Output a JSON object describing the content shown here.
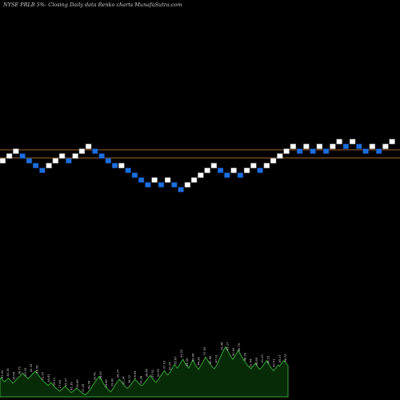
{
  "chart_data": {
    "type": "renko",
    "title": "NYSE PRLB 5%-  Closing Daily data  Renko  charts MunafaSutra.com",
    "colors": {
      "background": "#000000",
      "up_brick": "#ffffff",
      "down_brick": "#1e6fdc",
      "down_brick_border": "#0a3c8c",
      "reference_line": "#a0642a",
      "volume_fill": "#062b06",
      "volume_stroke": "#3aa63a"
    },
    "bricks": [
      {
        "dir": "up",
        "level": 5
      },
      {
        "dir": "up",
        "level": 6
      },
      {
        "dir": "up",
        "level": 7
      },
      {
        "dir": "down",
        "level": 6
      },
      {
        "dir": "down",
        "level": 5
      },
      {
        "dir": "down",
        "level": 4
      },
      {
        "dir": "down",
        "level": 3
      },
      {
        "dir": "up",
        "level": 4
      },
      {
        "dir": "up",
        "level": 5
      },
      {
        "dir": "up",
        "level": 6
      },
      {
        "dir": "down",
        "level": 5
      },
      {
        "dir": "up",
        "level": 6
      },
      {
        "dir": "up",
        "level": 7
      },
      {
        "dir": "up",
        "level": 8
      },
      {
        "dir": "down",
        "level": 7
      },
      {
        "dir": "down",
        "level": 6
      },
      {
        "dir": "down",
        "level": 5
      },
      {
        "dir": "down",
        "level": 4
      },
      {
        "dir": "up",
        "level": 4
      },
      {
        "dir": "down",
        "level": 3
      },
      {
        "dir": "down",
        "level": 2
      },
      {
        "dir": "down",
        "level": 1
      },
      {
        "dir": "down",
        "level": 0
      },
      {
        "dir": "up",
        "level": 1
      },
      {
        "dir": "down",
        "level": 0
      },
      {
        "dir": "up",
        "level": 1
      },
      {
        "dir": "down",
        "level": 0
      },
      {
        "dir": "down",
        "level": -1
      },
      {
        "dir": "up",
        "level": 0
      },
      {
        "dir": "up",
        "level": 1
      },
      {
        "dir": "up",
        "level": 2
      },
      {
        "dir": "up",
        "level": 3
      },
      {
        "dir": "up",
        "level": 4
      },
      {
        "dir": "down",
        "level": 3
      },
      {
        "dir": "down",
        "level": 2
      },
      {
        "dir": "up",
        "level": 3
      },
      {
        "dir": "down",
        "level": 2
      },
      {
        "dir": "up",
        "level": 3
      },
      {
        "dir": "up",
        "level": 4
      },
      {
        "dir": "down",
        "level": 3
      },
      {
        "dir": "up",
        "level": 4
      },
      {
        "dir": "up",
        "level": 5
      },
      {
        "dir": "up",
        "level": 6
      },
      {
        "dir": "up",
        "level": 7
      },
      {
        "dir": "up",
        "level": 8
      },
      {
        "dir": "down",
        "level": 7
      },
      {
        "dir": "up",
        "level": 8
      },
      {
        "dir": "down",
        "level": 7
      },
      {
        "dir": "up",
        "level": 8
      },
      {
        "dir": "down",
        "level": 7
      },
      {
        "dir": "up",
        "level": 8
      },
      {
        "dir": "up",
        "level": 9
      },
      {
        "dir": "down",
        "level": 8
      },
      {
        "dir": "up",
        "level": 9
      },
      {
        "dir": "down",
        "level": 8
      },
      {
        "dir": "down",
        "level": 7
      },
      {
        "dir": "up",
        "level": 8
      },
      {
        "dir": "down",
        "level": 7
      },
      {
        "dir": "up",
        "level": 8
      },
      {
        "dir": "up",
        "level": 9
      }
    ],
    "reference_levels": [
      7.8,
      6.1
    ],
    "volume": [
      28,
      31,
      27,
      24,
      26,
      28,
      30,
      27,
      25,
      22,
      24,
      26,
      29,
      31,
      33,
      36,
      38,
      35,
      33,
      31,
      29,
      32,
      34,
      37,
      39,
      41,
      38,
      35,
      32,
      29,
      26,
      24,
      22,
      20,
      18,
      21,
      23,
      20,
      17,
      15,
      13,
      11,
      9,
      11,
      13,
      15,
      17,
      14,
      12,
      10,
      7,
      8,
      10,
      12,
      14,
      12,
      10,
      8,
      6,
      5,
      3,
      5,
      7,
      10,
      13,
      17,
      21,
      24,
      27,
      30,
      33,
      29,
      25,
      21,
      18,
      15,
      12,
      10,
      8,
      11,
      14,
      18,
      22,
      25,
      28,
      26,
      23,
      20,
      17,
      15,
      14,
      16,
      19,
      22,
      25,
      28,
      26,
      24,
      21,
      19,
      18,
      20,
      23,
      26,
      29,
      32,
      34,
      31,
      28,
      25,
      23,
      26,
      29,
      33,
      36,
      39,
      42,
      38,
      35,
      37,
      40,
      44,
      48,
      52,
      49,
      46,
      49,
      53,
      57,
      60,
      56,
      52,
      49,
      46,
      50,
      55,
      59,
      54,
      50,
      47,
      44,
      48,
      52,
      56,
      60,
      64,
      60,
      56,
      53,
      50,
      47,
      45,
      48,
      52,
      57,
      62,
      67,
      72,
      76,
      80,
      76,
      72,
      68,
      64,
      60,
      63,
      67,
      71,
      75,
      70,
      66,
      62,
      58,
      55,
      52,
      49,
      47,
      45,
      48,
      51,
      54,
      50,
      47,
      44,
      46,
      49,
      52,
      55,
      58,
      54,
      50,
      47,
      44,
      42,
      45,
      48,
      51,
      49,
      52,
      55,
      58,
      56,
      53,
      50
    ],
    "volume_labels": [
      "33.52",
      "40.16",
      "35.64",
      "38.71",
      "29.33",
      "42.05",
      "36.28",
      "31.90",
      "44.61",
      "39.12",
      "27.48",
      "35.07",
      "41.39",
      "30.86",
      "37.25",
      "43.58",
      "32.41",
      "28.93",
      "34.66",
      "39.80",
      "26.37",
      "31.14",
      "36.72",
      "29.55",
      "33.08",
      "38.46",
      "27.91",
      "32.63",
      "37.19",
      "30.24",
      "35.87",
      "41.02",
      "34.39",
      "39.64",
      "44.28",
      "37.53",
      "42.86",
      "47.31",
      "39.98",
      "45.17",
      "50.62",
      "43.76",
      "48.09",
      "52.44",
      "46.85",
      "41.33",
      "38.15",
      "43.51",
      "49.27",
      "36.79"
    ]
  }
}
